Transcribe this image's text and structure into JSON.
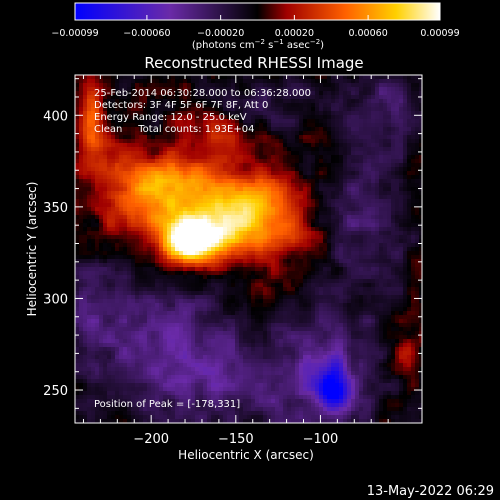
{
  "chart_data": {
    "type": "heatmap",
    "title": "Reconstructed RHESSI Image",
    "xlabel": "Heliocentric X (arcsec)",
    "ylabel": "Heliocentric Y (arcsec)",
    "xlim": [
      -245,
      -40
    ],
    "ylim": [
      232,
      422
    ],
    "x_ticks": [
      -200,
      -150,
      -100
    ],
    "x_tick_labels": [
      "−200",
      "−150",
      "−100"
    ],
    "y_ticks": [
      250,
      300,
      350,
      400
    ],
    "y_tick_labels": [
      "250",
      "300",
      "350",
      "400"
    ],
    "colorbar": {
      "range": [
        -0.00099,
        0.00099
      ],
      "ticks": [
        -0.00099,
        -0.0006,
        -0.0002,
        0.0002,
        0.0006,
        0.00099
      ],
      "tick_labels": [
        "−0.00099",
        "−0.00060",
        "−0.00020",
        "0.00020",
        "0.00060",
        "0.00099"
      ],
      "colors": [
        "#0000ff",
        "#6a2aa8",
        "#000000",
        "#a00000",
        "#ff6000",
        "#ffd000",
        "#ffffff"
      ],
      "label_parts": [
        "(photons cm",
        "−2",
        " s",
        "−1",
        " asec",
        "−2",
        ")"
      ]
    },
    "sources": [
      {
        "x": -178,
        "y": 331,
        "amp": 0.00099,
        "sx": 10,
        "sy": 8
      },
      {
        "x": -160,
        "y": 334,
        "amp": 0.00066,
        "sx": 16,
        "sy": 11
      },
      {
        "x": -146,
        "y": 350,
        "amp": 0.0005,
        "sx": 16,
        "sy": 12
      },
      {
        "x": -198,
        "y": 352,
        "amp": 0.00048,
        "sx": 22,
        "sy": 14
      },
      {
        "x": -183,
        "y": 366,
        "amp": 0.00038,
        "sx": 22,
        "sy": 10
      },
      {
        "x": -120,
        "y": 345,
        "amp": 0.00034,
        "sx": 14,
        "sy": 16
      },
      {
        "x": -236,
        "y": 398,
        "amp": 0.00042,
        "sx": 6,
        "sy": 12
      },
      {
        "x": -230,
        "y": 378,
        "amp": 0.00024,
        "sx": 10,
        "sy": 8
      },
      {
        "x": -160,
        "y": 392,
        "amp": 0.00022,
        "sx": 15,
        "sy": 9
      },
      {
        "x": -135,
        "y": 300,
        "amp": 0.00016,
        "sx": 10,
        "sy": 8
      },
      {
        "x": -50,
        "y": 268,
        "amp": 0.00022,
        "sx": 6,
        "sy": 8
      },
      {
        "x": -200,
        "y": 285,
        "amp": -0.00032,
        "sx": 35,
        "sy": 22
      },
      {
        "x": -160,
        "y": 255,
        "amp": -0.0003,
        "sx": 40,
        "sy": 18
      },
      {
        "x": -95,
        "y": 260,
        "amp": -0.00038,
        "sx": 22,
        "sy": 22
      },
      {
        "x": -92,
        "y": 250,
        "amp": -0.00075,
        "sx": 6,
        "sy": 8
      },
      {
        "x": -75,
        "y": 350,
        "amp": -0.0003,
        "sx": 18,
        "sy": 30
      },
      {
        "x": -60,
        "y": 405,
        "amp": -0.00028,
        "sx": 16,
        "sy": 12
      },
      {
        "x": -130,
        "y": 405,
        "amp": -0.0002,
        "sx": 20,
        "sy": 10
      },
      {
        "x": -240,
        "y": 300,
        "amp": -0.00018,
        "sx": 10,
        "sy": 20
      }
    ]
  },
  "annotations": {
    "time_range": "25-Feb-2014 06:30:28.000 to 06:36:28.000",
    "detectors": "Detectors: 3F 4F 5F 6F 7F 8F, Att 0",
    "energy": "Energy Range: 12.0 - 25.0 keV",
    "clean": "Clean     Total counts: 1.93E+04",
    "peak": "Position of Peak = [-178,331]"
  },
  "footer": {
    "date": "13-May-2022 06:29"
  }
}
